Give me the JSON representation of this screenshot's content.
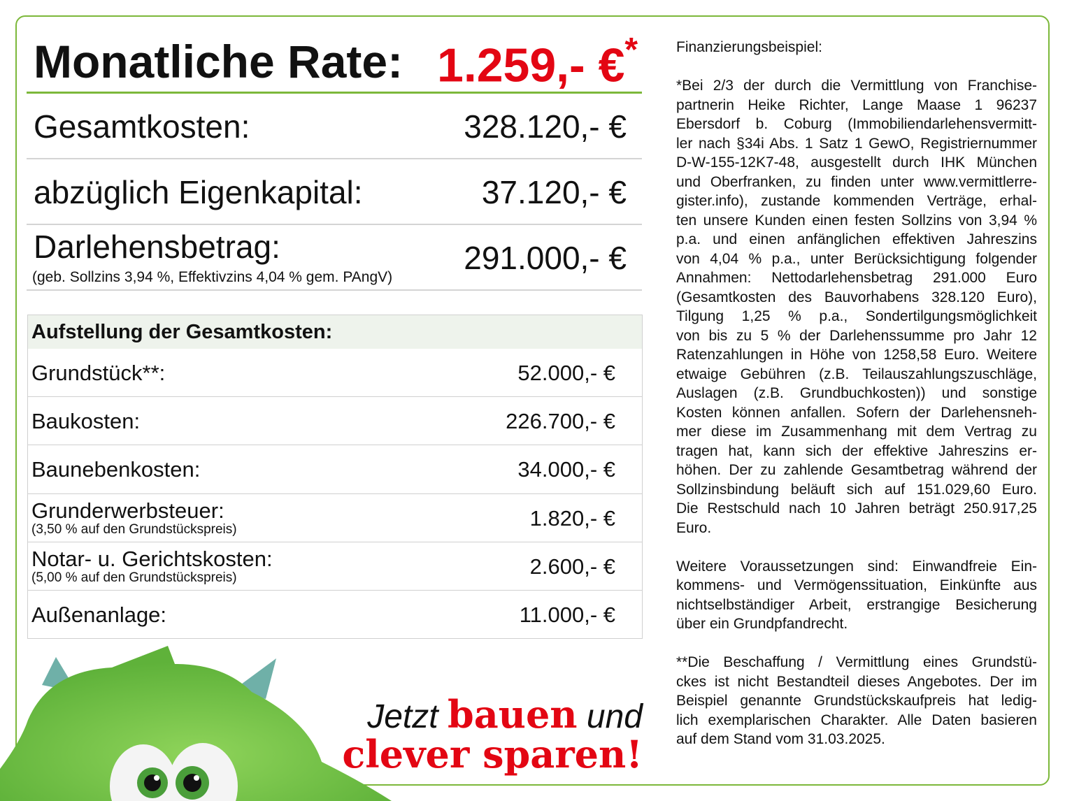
{
  "headline": {
    "label": "Monatliche Rate:",
    "value": "1.259,- €",
    "marker": "*"
  },
  "summary": [
    {
      "label": "Gesamtkosten:",
      "value": "328.120,- €"
    },
    {
      "label": "abzüglich Eigenkapital:",
      "value": "37.120,- €"
    },
    {
      "label": "Darlehensbetrag:",
      "value": "291.000,- €",
      "note": "(geb. Sollzins 3,94 %, Effektivzins 4,04 % gem. PAngV)"
    }
  ],
  "table": {
    "title": "Aufstellung der Gesamtkosten:",
    "rows": [
      {
        "label": "Grundstück**:",
        "value": "52.000,- €"
      },
      {
        "label": "Baukosten:",
        "value": "226.700,- €"
      },
      {
        "label": "Baunebenkosten:",
        "value": "34.000,- €"
      },
      {
        "label": "Grunderwerbsteuer:",
        "note": "(3,50 % auf den Grundstückspreis)",
        "value": "1.820,- €"
      },
      {
        "label": "Notar- u. Gerichtskosten:",
        "note": "(5,00 % auf den Grundstückspreis)",
        "value": "2.600,- €"
      },
      {
        "label": "Außenanlage:",
        "value": "11.000,- €"
      }
    ]
  },
  "slogan": {
    "a": "Jetzt",
    "b": "bauen",
    "c": "und",
    "d": "clever sparen!"
  },
  "colors": {
    "accent_green": "#7cb83a",
    "red": "#e30613"
  },
  "mascot": "green-furry-monster-illustration",
  "fineprint": {
    "title": "Finanzierungsbeispiel:",
    "paragraphs": [
      [
        "*Bei 2/3 der durch die Vermittlung von Franchise-",
        "partnerin Heike Richter, Lange Maase 1 96237",
        "Ebersdorf b. Coburg (Immobiliendarlehensvermitt-",
        "ler nach §34i Abs. 1 Satz 1 GewO, Registriernummer",
        "D-W-155-12K7-48, ausgestellt durch IHK München",
        "und Oberfranken, zu finden unter www.vermittlerre-",
        "gister.info), zustande kommenden Verträge, erhal-",
        "ten unsere Kunden einen festen Sollzins von 3,94 %",
        "p.a. und einen anfänglichen effektiven Jahreszins",
        "von 4,04 % p.a., unter Berücksichtigung folgender",
        "Annahmen: Nettodarlehensbetrag 291.000 Euro",
        "(Gesamtkosten des Bauvorhabens 328.120 Euro),",
        "Tilgung 1,25 % p.a., Sondertilgungsmöglichkeit",
        "von bis zu 5 % der Darlehenssumme pro Jahr 12",
        "Ratenzahlungen in Höhe von 1258,58 Euro. Weitere",
        "etwaige Gebühren (z.B. Teilauszahlungszuschläge,",
        "Auslagen (z.B. Grundbuchkosten)) und sonstige",
        "Kosten können anfallen. Sofern der Darlehensneh-",
        "mer diese im Zusammenhang mit dem Vertrag zu",
        "tragen hat, kann sich der effektive Jahreszins er-",
        "höhen. Der zu zahlende Gesamtbetrag während der",
        "Sollzinsbindung beläuft sich auf 151.029,60 Euro.",
        "Die Restschuld nach 10 Jahren beträgt 250.917,25",
        "Euro."
      ],
      [
        "Weitere Voraussetzungen sind: Einwandfreie Ein-",
        "kommens- und Vermögenssituation, Einkünfte aus",
        "nichtselbständiger Arbeit, erstrangige Besicherung",
        "über ein Grundpfandrecht."
      ],
      [
        "**Die Beschaffung / Vermittlung eines Grundstü-",
        "ckes ist nicht Bestandteil dieses Angebotes. Der im",
        "Beispiel genannte Grundstückskaufpreis hat ledig-",
        "lich exemplarischen Charakter. Alle Daten basieren",
        "auf dem Stand vom 31.03.2025."
      ]
    ]
  }
}
